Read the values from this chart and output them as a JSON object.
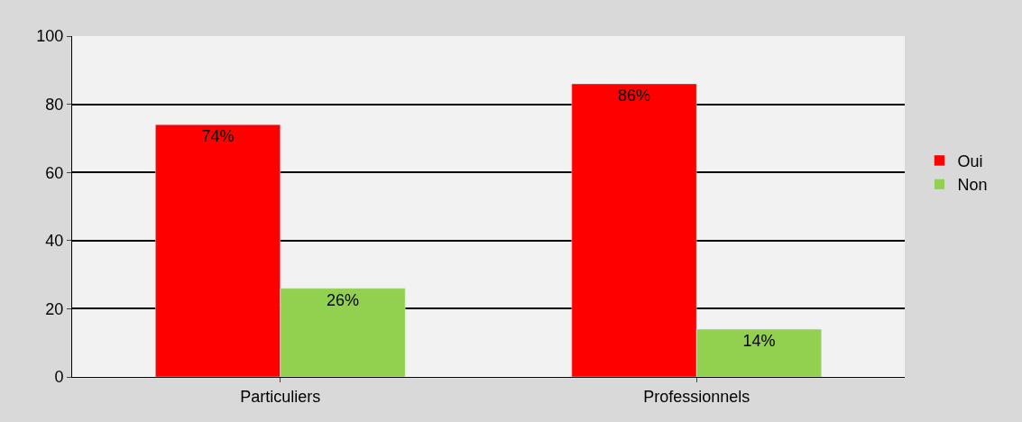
{
  "chart_data": {
    "type": "bar",
    "categories": [
      "Particuliers",
      "Professionnels"
    ],
    "series": [
      {
        "name": "Oui",
        "color": "#ff0000",
        "values": [
          74,
          86
        ],
        "value_labels": [
          "74%",
          "86%"
        ]
      },
      {
        "name": "Non",
        "color": "#92d050",
        "values": [
          26,
          14
        ],
        "value_labels": [
          "26%",
          "14%"
        ]
      }
    ],
    "ylim": [
      0,
      100
    ],
    "yticks": [
      0,
      20,
      40,
      60,
      80,
      100
    ],
    "grid": "y",
    "legend": "right"
  }
}
